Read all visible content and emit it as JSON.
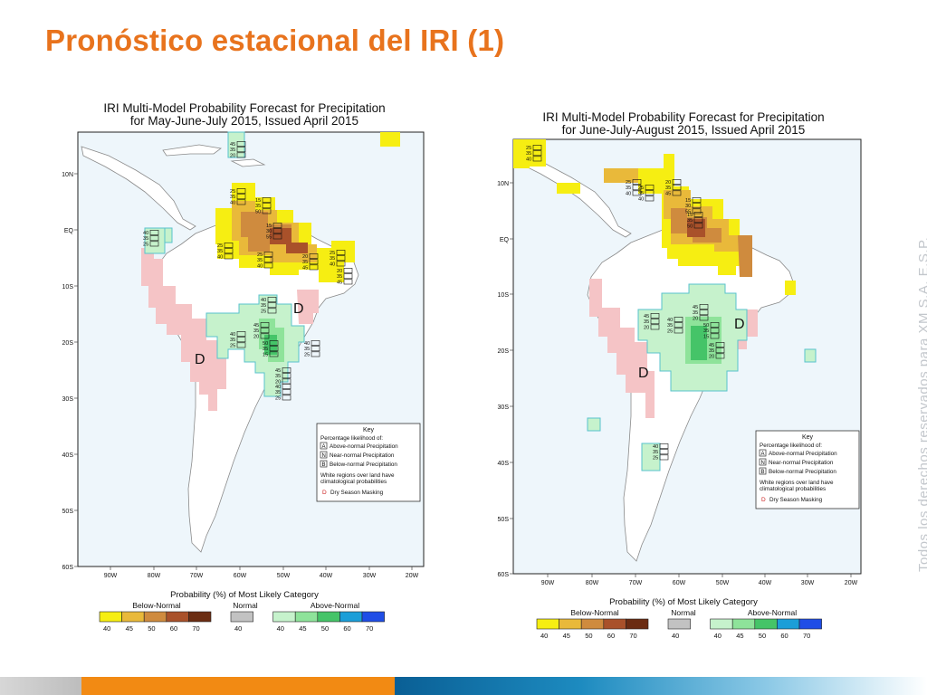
{
  "slide": {
    "title": "Pronóstico estacional del IRI (1)",
    "watermark": "Todos los derechos reservados para XM S.A. E.S.P."
  },
  "maps": [
    {
      "title_line1": "IRI Multi-Model Probability Forecast for Precipitation",
      "title_line2": "for May-June-July 2015, Issued April 2015",
      "lat_labels": [
        "10N",
        "EQ",
        "10S",
        "20S",
        "30S",
        "40S",
        "50S",
        "60S"
      ],
      "lon_labels": [
        "90W",
        "80W",
        "70W",
        "60W",
        "50W",
        "40W",
        "30W",
        "20W"
      ],
      "dry_mask_labels": [
        "D",
        "D"
      ],
      "cell_labels": [
        [
          "45",
          "35",
          "20"
        ],
        [
          "25",
          "35",
          "40"
        ],
        [
          "15",
          "35",
          "50"
        ],
        [
          "15",
          "30",
          "55"
        ],
        [
          "25",
          "35",
          "40"
        ],
        [
          "25",
          "35",
          "40"
        ],
        [
          "25",
          "35",
          "40"
        ],
        [
          "20",
          "35",
          "45"
        ],
        [
          "20",
          "35",
          "45"
        ],
        [
          "40",
          "35",
          "25"
        ],
        [
          "40",
          "35",
          "25"
        ],
        [
          "45",
          "35",
          "20"
        ],
        [
          "50",
          "35",
          "15"
        ],
        [
          "40",
          "35",
          "25"
        ],
        [
          "40",
          "35",
          "25"
        ],
        [
          "45",
          "35",
          "20"
        ],
        [
          "40",
          "35",
          "25"
        ]
      ],
      "key": {
        "heading": "Key",
        "subheading": "Percentage likelihood of:",
        "items": [
          {
            "letter": "A",
            "text": "Above-normal Precipitation"
          },
          {
            "letter": "N",
            "text": "Near-normal Precipitation"
          },
          {
            "letter": "B",
            "text": "Below-normal Precipitation"
          }
        ],
        "note_line1": "White regions over land have",
        "note_line2": "climatological probabilities",
        "dry_letter": "D",
        "dry_text": "Dry Season Masking"
      },
      "colorbar": {
        "title": "Probability (%) of Most Likely Category",
        "below_label": "Below-Normal",
        "normal_label": "Normal",
        "above_label": "Above-Normal",
        "below_ticks": [
          "40",
          "45",
          "50",
          "60",
          "70"
        ],
        "normal_ticks": [
          "40"
        ],
        "above_ticks": [
          "40",
          "45",
          "50",
          "60",
          "70"
        ],
        "below_colors": [
          "#f6ee12",
          "#e9b93a",
          "#cf8b3e",
          "#a9512a",
          "#6b2c12"
        ],
        "normal_colors": [
          "#c2c2c2"
        ],
        "above_colors": [
          "#c6f2cc",
          "#8ee39a",
          "#45c468",
          "#1b9ed8",
          "#1f4de6"
        ]
      }
    },
    {
      "title_line1": "IRI Multi-Model Probability Forecast for Precipitation",
      "title_line2": "for June-July-August 2015, Issued April 2015",
      "lat_labels": [
        "10N",
        "EQ",
        "10S",
        "20S",
        "30S",
        "40S",
        "50S",
        "60S"
      ],
      "lon_labels": [
        "90W",
        "80W",
        "70W",
        "60W",
        "50W",
        "40W",
        "30W",
        "20W"
      ],
      "dry_mask_labels": [
        "D",
        "D"
      ],
      "cell_labels": [
        [
          "25",
          "35",
          "40"
        ],
        [
          "25",
          "35",
          "40"
        ],
        [
          "20",
          "35",
          "45"
        ],
        [
          "25",
          "35",
          "40"
        ],
        [
          "15",
          "30",
          "55"
        ],
        [
          "15",
          "35",
          "50"
        ],
        [
          "45",
          "35",
          "20"
        ],
        [
          "45",
          "35",
          "20"
        ],
        [
          "40",
          "35",
          "25"
        ],
        [
          "50",
          "35",
          "15"
        ],
        [
          "45",
          "35",
          "20"
        ],
        [
          "40",
          "35",
          "25"
        ]
      ],
      "key": {
        "heading": "Key",
        "subheading": "Percentage likelihood of:",
        "items": [
          {
            "letter": "A",
            "text": "Above-normal Precipitation"
          },
          {
            "letter": "N",
            "text": "Near-normal Precipitation"
          },
          {
            "letter": "B",
            "text": "Below-normal Precipitation"
          }
        ],
        "note_line1": "White regions over land have",
        "note_line2": "climatological probabilities",
        "dry_letter": "D",
        "dry_text": "Dry Season Masking"
      },
      "colorbar": {
        "title": "Probability (%) of Most Likely Category",
        "below_label": "Below-Normal",
        "normal_label": "Normal",
        "above_label": "Above-Normal",
        "below_ticks": [
          "40",
          "45",
          "50",
          "60",
          "70"
        ],
        "normal_ticks": [
          "40"
        ],
        "above_ticks": [
          "40",
          "45",
          "50",
          "60",
          "70"
        ],
        "below_colors": [
          "#f6ee12",
          "#e9b93a",
          "#cf8b3e",
          "#a9512a",
          "#6b2c12"
        ],
        "normal_colors": [
          "#c2c2c2"
        ],
        "above_colors": [
          "#c6f2cc",
          "#8ee39a",
          "#45c468",
          "#1b9ed8",
          "#1f4de6"
        ]
      }
    }
  ]
}
